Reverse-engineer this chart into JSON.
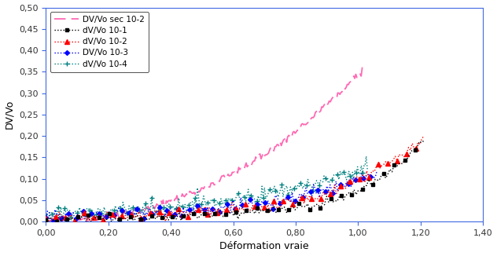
{
  "title": "",
  "xlabel": "Déformation vraie",
  "ylabel": "DV/Vo",
  "xlim": [
    0.0,
    1.4
  ],
  "ylim": [
    0.0,
    0.5
  ],
  "xticks": [
    0.0,
    0.2,
    0.4,
    0.6,
    0.8,
    1.0,
    1.2,
    1.4
  ],
  "yticks": [
    0.0,
    0.05,
    0.1,
    0.15,
    0.2,
    0.25,
    0.3,
    0.35,
    0.4,
    0.45,
    0.5
  ],
  "legend": [
    "DV/Vo sec 10-2",
    "dV/Vo 10-1",
    "dV/Vo 10-2",
    "DV/Vo 10-3",
    "dV/Vo 10-4"
  ],
  "background_color": "#ffffff",
  "figsize": [
    6.32,
    3.26
  ],
  "dpi": 100
}
